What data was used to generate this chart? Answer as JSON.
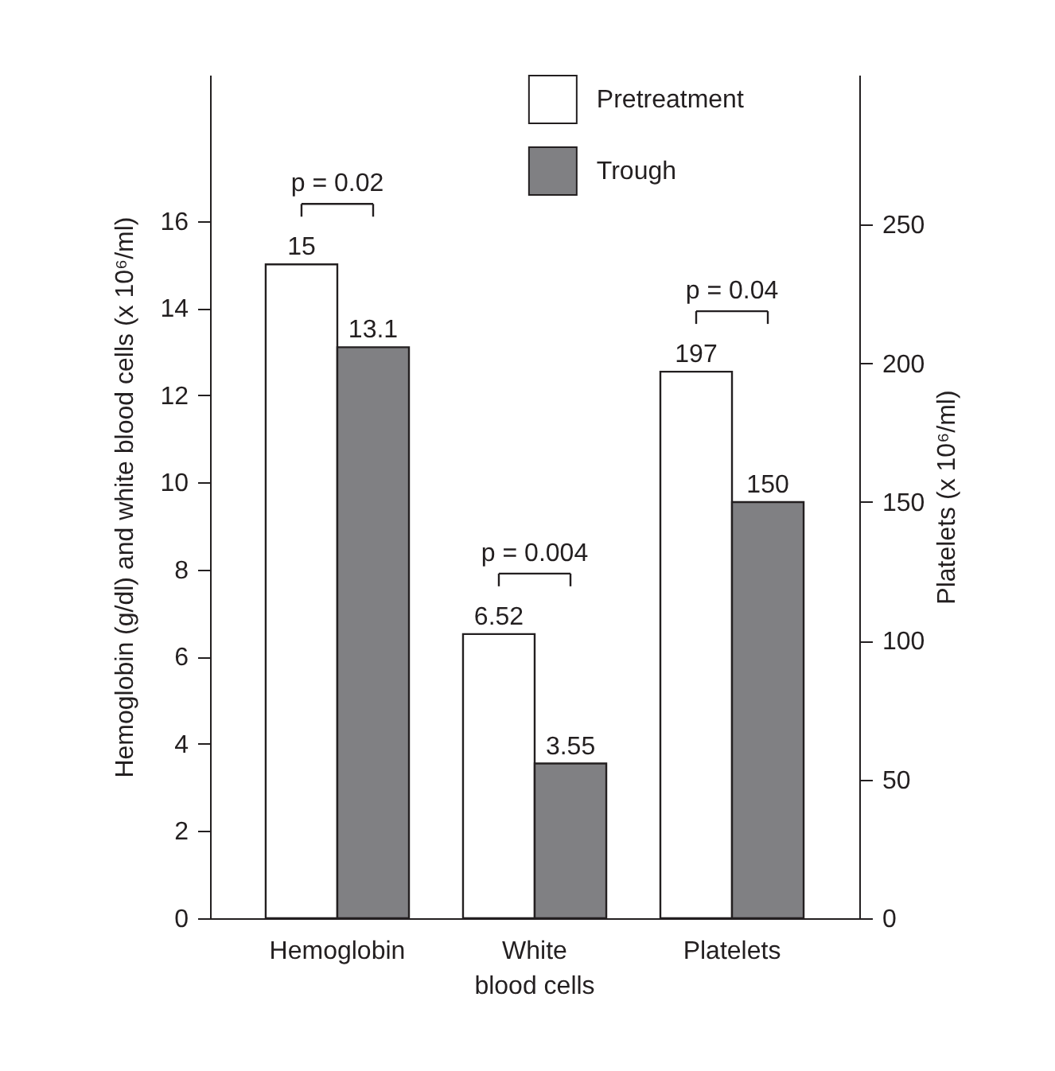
{
  "chart_data": {
    "type": "bar",
    "ylabel": "Hemoglobin (g/dl) and white blood cells (x 10⁶/ml)",
    "y2label": "Platelets (x 10⁶/ml)",
    "categories": [
      "Hemoglobin",
      "White blood cells",
      "Platelets"
    ],
    "series": [
      {
        "name": "Pretreatment",
        "color": "#ffffff",
        "values": [
          15,
          6.52,
          null
        ]
      },
      {
        "name": "Trough",
        "color": "#808083",
        "values": [
          13.1,
          3.55,
          null
        ]
      },
      {
        "color": "#ffffff",
        "axis": "y2",
        "values": [
          null,
          null,
          197
        ]
      },
      {
        "color": "#808083",
        "axis": "y2",
        "values": [
          null,
          null,
          150
        ]
      }
    ],
    "ylim": [
      0,
      19.35
    ],
    "yticks": [
      0,
      2,
      4,
      6,
      8,
      10,
      12,
      14,
      16
    ],
    "y2lim": [
      0,
      304
    ],
    "y2ticks": [
      0,
      50,
      100,
      150,
      200,
      250
    ],
    "data_labels": true,
    "legend": "top",
    "annotations": [
      "p = 0.02",
      "p = 0.004",
      "p = 0.04"
    ]
  }
}
